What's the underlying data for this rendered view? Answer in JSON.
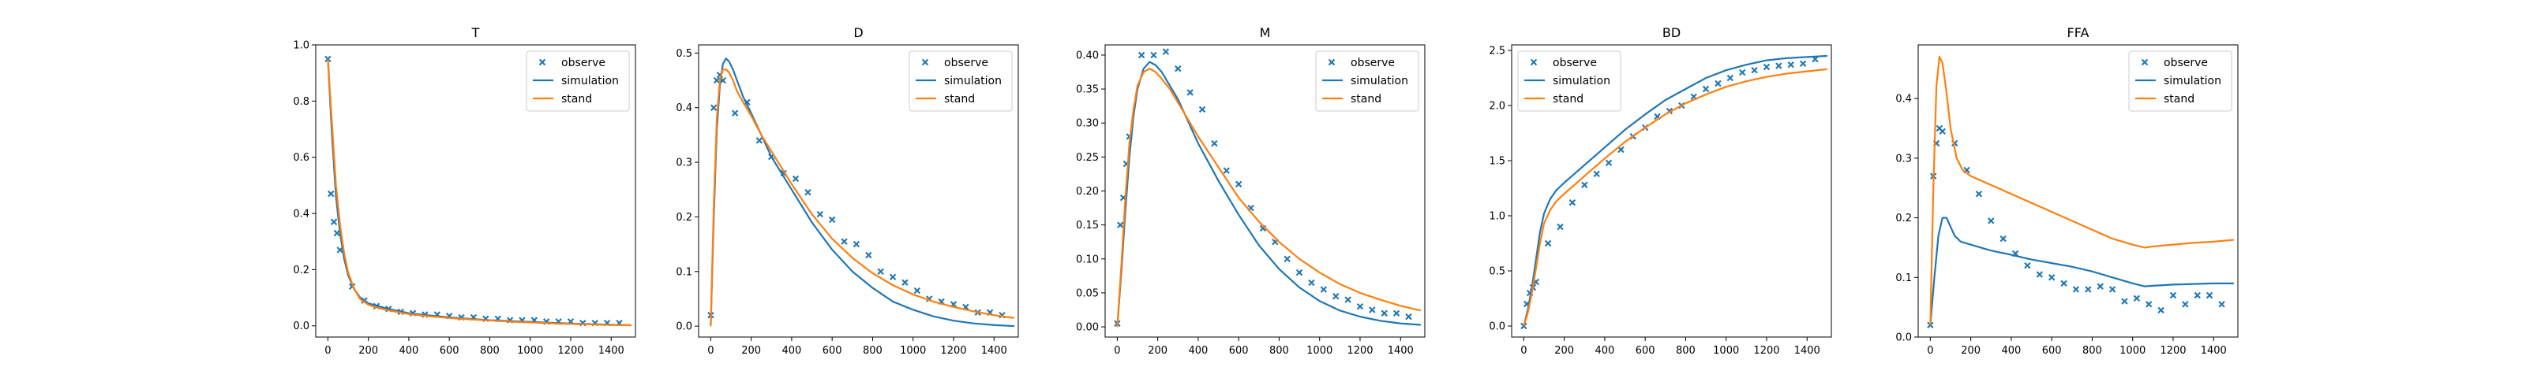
{
  "figure": {
    "legend_labels": {
      "observe": "observe",
      "simulation": "simulation",
      "stand": "stand"
    },
    "colors": {
      "observe": "#1f77b4",
      "simulation": "#1f77b4",
      "stand": "#ff7f0e"
    }
  },
  "chart_data": [
    {
      "type": "line",
      "title": "T",
      "xlabel": "",
      "ylabel": "",
      "xlim": [
        -60,
        1520
      ],
      "ylim": [
        -0.04,
        1.0
      ],
      "xticks": [
        0,
        200,
        400,
        600,
        800,
        1000,
        1200,
        1400
      ],
      "yticks": [
        0.0,
        0.2,
        0.4,
        0.6,
        0.8,
        1.0
      ],
      "ytick_labels": [
        "0.0",
        "0.2",
        "0.4",
        "0.6",
        "0.8",
        "1.0"
      ],
      "legend": "top-right",
      "series": [
        {
          "name": "observe",
          "kind": "scatter",
          "x": [
            0,
            15,
            30,
            45,
            60,
            120,
            180,
            240,
            300,
            360,
            420,
            480,
            540,
            600,
            660,
            720,
            780,
            840,
            900,
            960,
            1020,
            1080,
            1140,
            1200,
            1260,
            1320,
            1380,
            1440
          ],
          "y": [
            0.95,
            0.47,
            0.37,
            0.33,
            0.27,
            0.14,
            0.09,
            0.07,
            0.06,
            0.05,
            0.045,
            0.04,
            0.04,
            0.035,
            0.03,
            0.03,
            0.025,
            0.025,
            0.02,
            0.02,
            0.02,
            0.015,
            0.015,
            0.015,
            0.01,
            0.01,
            0.01,
            0.01
          ]
        },
        {
          "name": "simulation",
          "kind": "line",
          "x": [
            0,
            20,
            40,
            60,
            80,
            100,
            130,
            160,
            200,
            250,
            300,
            400,
            500,
            600,
            700,
            800,
            900,
            1000,
            1100,
            1200,
            1300,
            1400,
            1500
          ],
          "y": [
            0.95,
            0.68,
            0.46,
            0.33,
            0.24,
            0.18,
            0.13,
            0.1,
            0.08,
            0.07,
            0.06,
            0.045,
            0.037,
            0.03,
            0.025,
            0.02,
            0.017,
            0.014,
            0.011,
            0.008,
            0.006,
            0.004,
            0.002
          ]
        },
        {
          "name": "stand",
          "kind": "line",
          "x": [
            0,
            20,
            40,
            60,
            80,
            100,
            130,
            160,
            200,
            250,
            300,
            400,
            500,
            600,
            700,
            800,
            900,
            1000,
            1100,
            1200,
            1300,
            1400,
            1500
          ],
          "y": [
            0.95,
            0.72,
            0.5,
            0.36,
            0.26,
            0.19,
            0.13,
            0.095,
            0.075,
            0.063,
            0.055,
            0.042,
            0.034,
            0.028,
            0.023,
            0.019,
            0.015,
            0.012,
            0.009,
            0.007,
            0.005,
            0.003,
            0.002
          ]
        }
      ]
    },
    {
      "type": "line",
      "title": "D",
      "xlabel": "",
      "ylabel": "",
      "xlim": [
        -60,
        1520
      ],
      "ylim": [
        -0.02,
        0.515
      ],
      "xticks": [
        0,
        200,
        400,
        600,
        800,
        1000,
        1200,
        1400
      ],
      "yticks": [
        0.0,
        0.1,
        0.2,
        0.3,
        0.4,
        0.5
      ],
      "ytick_labels": [
        "0.0",
        "0.1",
        "0.2",
        "0.3",
        "0.4",
        "0.5"
      ],
      "legend": "top-right",
      "series": [
        {
          "name": "observe",
          "kind": "scatter",
          "x": [
            0,
            15,
            30,
            45,
            60,
            120,
            180,
            240,
            300,
            360,
            420,
            480,
            540,
            600,
            660,
            720,
            780,
            840,
            900,
            960,
            1020,
            1080,
            1140,
            1200,
            1260,
            1320,
            1380,
            1440
          ],
          "y": [
            0.02,
            0.4,
            0.45,
            0.46,
            0.45,
            0.39,
            0.41,
            0.34,
            0.31,
            0.28,
            0.27,
            0.245,
            0.205,
            0.195,
            0.155,
            0.15,
            0.13,
            0.1,
            0.09,
            0.08,
            0.065,
            0.05,
            0.045,
            0.04,
            0.035,
            0.025,
            0.025,
            0.02
          ]
        },
        {
          "name": "simulation",
          "kind": "line",
          "x": [
            0,
            15,
            30,
            45,
            60,
            75,
            90,
            110,
            130,
            160,
            200,
            250,
            300,
            400,
            500,
            600,
            700,
            800,
            900,
            1000,
            1100,
            1200,
            1300,
            1400,
            1500
          ],
          "y": [
            0.0,
            0.2,
            0.36,
            0.44,
            0.48,
            0.49,
            0.485,
            0.47,
            0.45,
            0.42,
            0.39,
            0.35,
            0.31,
            0.25,
            0.19,
            0.14,
            0.1,
            0.07,
            0.045,
            0.03,
            0.018,
            0.01,
            0.005,
            0.002,
            0.0
          ]
        },
        {
          "name": "stand",
          "kind": "line",
          "x": [
            0,
            15,
            30,
            45,
            60,
            75,
            90,
            110,
            130,
            160,
            200,
            250,
            300,
            400,
            500,
            600,
            700,
            800,
            900,
            1000,
            1100,
            1200,
            1300,
            1400,
            1500
          ],
          "y": [
            0.0,
            0.22,
            0.38,
            0.45,
            0.47,
            0.47,
            0.465,
            0.45,
            0.43,
            0.41,
            0.385,
            0.35,
            0.32,
            0.26,
            0.205,
            0.16,
            0.125,
            0.097,
            0.075,
            0.058,
            0.045,
            0.035,
            0.027,
            0.02,
            0.015
          ]
        }
      ]
    },
    {
      "type": "line",
      "title": "M",
      "xlabel": "",
      "ylabel": "",
      "xlim": [
        -60,
        1520
      ],
      "ylim": [
        -0.015,
        0.415
      ],
      "xticks": [
        0,
        200,
        400,
        600,
        800,
        1000,
        1200,
        1400
      ],
      "yticks": [
        0.0,
        0.05,
        0.1,
        0.15,
        0.2,
        0.25,
        0.3,
        0.35,
        0.4
      ],
      "ytick_labels": [
        "0.00",
        "0.05",
        "0.10",
        "0.15",
        "0.20",
        "0.25",
        "0.30",
        "0.35",
        "0.40"
      ],
      "legend": "top-right",
      "series": [
        {
          "name": "observe",
          "kind": "scatter",
          "x": [
            0,
            15,
            30,
            45,
            60,
            120,
            180,
            240,
            300,
            360,
            420,
            480,
            540,
            600,
            660,
            720,
            780,
            840,
            900,
            960,
            1020,
            1080,
            1140,
            1200,
            1260,
            1320,
            1380,
            1440
          ],
          "y": [
            0.005,
            0.15,
            0.19,
            0.24,
            0.28,
            0.4,
            0.4,
            0.405,
            0.38,
            0.345,
            0.32,
            0.27,
            0.23,
            0.21,
            0.175,
            0.145,
            0.125,
            0.1,
            0.08,
            0.065,
            0.055,
            0.045,
            0.04,
            0.03,
            0.025,
            0.02,
            0.02,
            0.015
          ]
        },
        {
          "name": "simulation",
          "kind": "line",
          "x": [
            0,
            20,
            40,
            60,
            80,
            100,
            130,
            160,
            190,
            220,
            260,
            300,
            400,
            500,
            600,
            700,
            800,
            900,
            1000,
            1100,
            1200,
            1300,
            1400,
            1500
          ],
          "y": [
            0.0,
            0.08,
            0.17,
            0.25,
            0.31,
            0.35,
            0.38,
            0.39,
            0.385,
            0.375,
            0.355,
            0.335,
            0.27,
            0.215,
            0.165,
            0.12,
            0.085,
            0.058,
            0.038,
            0.024,
            0.015,
            0.009,
            0.005,
            0.003
          ]
        },
        {
          "name": "stand",
          "kind": "line",
          "x": [
            0,
            20,
            40,
            60,
            80,
            100,
            130,
            160,
            190,
            220,
            260,
            300,
            400,
            500,
            600,
            700,
            800,
            900,
            1000,
            1100,
            1200,
            1300,
            1400,
            1500
          ],
          "y": [
            0.0,
            0.09,
            0.19,
            0.27,
            0.32,
            0.355,
            0.375,
            0.38,
            0.375,
            0.365,
            0.35,
            0.33,
            0.28,
            0.235,
            0.19,
            0.155,
            0.125,
            0.1,
            0.08,
            0.063,
            0.05,
            0.04,
            0.031,
            0.024
          ]
        }
      ]
    },
    {
      "type": "line",
      "title": "BD",
      "xlabel": "",
      "ylabel": "",
      "xlim": [
        -60,
        1520
      ],
      "ylim": [
        -0.1,
        2.55
      ],
      "xticks": [
        0,
        200,
        400,
        600,
        800,
        1000,
        1200,
        1400
      ],
      "yticks": [
        0.0,
        0.5,
        1.0,
        1.5,
        2.0,
        2.5
      ],
      "ytick_labels": [
        "0.0",
        "0.5",
        "1.0",
        "1.5",
        "2.0",
        "2.5"
      ],
      "legend": "top-left",
      "series": [
        {
          "name": "observe",
          "kind": "scatter",
          "x": [
            0,
            15,
            30,
            45,
            60,
            120,
            180,
            240,
            300,
            360,
            420,
            480,
            540,
            600,
            660,
            720,
            780,
            840,
            900,
            960,
            1020,
            1080,
            1140,
            1200,
            1260,
            1320,
            1380,
            1440
          ],
          "y": [
            0.0,
            0.2,
            0.3,
            0.35,
            0.4,
            0.75,
            0.9,
            1.12,
            1.28,
            1.38,
            1.48,
            1.6,
            1.72,
            1.8,
            1.9,
            1.95,
            2.0,
            2.08,
            2.15,
            2.2,
            2.25,
            2.3,
            2.32,
            2.35,
            2.36,
            2.37,
            2.38,
            2.42
          ]
        },
        {
          "name": "simulation",
          "kind": "line",
          "x": [
            0,
            20,
            40,
            60,
            80,
            100,
            130,
            160,
            200,
            250,
            300,
            400,
            500,
            600,
            700,
            800,
            900,
            1000,
            1100,
            1200,
            1300,
            1400,
            1500
          ],
          "y": [
            0.0,
            0.15,
            0.35,
            0.6,
            0.85,
            1.02,
            1.15,
            1.23,
            1.3,
            1.38,
            1.46,
            1.62,
            1.78,
            1.92,
            2.05,
            2.15,
            2.25,
            2.32,
            2.37,
            2.41,
            2.43,
            2.44,
            2.45
          ]
        },
        {
          "name": "stand",
          "kind": "line",
          "x": [
            0,
            20,
            40,
            60,
            80,
            100,
            130,
            160,
            200,
            250,
            300,
            400,
            500,
            600,
            700,
            800,
            900,
            1000,
            1100,
            1200,
            1300,
            1400,
            1500
          ],
          "y": [
            0.0,
            0.12,
            0.3,
            0.52,
            0.75,
            0.93,
            1.05,
            1.13,
            1.2,
            1.28,
            1.36,
            1.52,
            1.67,
            1.8,
            1.92,
            2.02,
            2.1,
            2.17,
            2.22,
            2.26,
            2.29,
            2.31,
            2.33
          ]
        }
      ]
    },
    {
      "type": "line",
      "title": "FFA",
      "xlabel": "",
      "ylabel": "",
      "xlim": [
        -60,
        1520
      ],
      "ylim": [
        0.0,
        0.49
      ],
      "xticks": [
        0,
        200,
        400,
        600,
        800,
        1000,
        1200,
        1400
      ],
      "yticks": [
        0.0,
        0.1,
        0.2,
        0.3,
        0.4
      ],
      "ytick_labels": [
        "0.0",
        "0.1",
        "0.2",
        "0.3",
        "0.4"
      ],
      "legend": "top-right",
      "series": [
        {
          "name": "observe",
          "kind": "scatter",
          "x": [
            0,
            15,
            30,
            45,
            60,
            120,
            180,
            240,
            300,
            360,
            420,
            480,
            540,
            600,
            660,
            720,
            780,
            840,
            900,
            960,
            1020,
            1080,
            1140,
            1200,
            1260,
            1320,
            1380,
            1440
          ],
          "y": [
            0.02,
            0.27,
            0.325,
            0.35,
            0.345,
            0.325,
            0.28,
            0.24,
            0.195,
            0.165,
            0.14,
            0.12,
            0.105,
            0.1,
            0.09,
            0.08,
            0.08,
            0.085,
            0.08,
            0.06,
            0.065,
            0.055,
            0.045,
            0.07,
            0.055,
            0.07,
            0.07,
            0.055
          ]
        },
        {
          "name": "simulation",
          "kind": "line",
          "x": [
            0,
            20,
            40,
            60,
            80,
            100,
            120,
            150,
            200,
            300,
            400,
            500,
            600,
            700,
            800,
            900,
            1000,
            1060,
            1100,
            1200,
            1300,
            1400,
            1500
          ],
          "y": [
            0.02,
            0.1,
            0.17,
            0.2,
            0.2,
            0.185,
            0.17,
            0.16,
            0.155,
            0.145,
            0.138,
            0.13,
            0.124,
            0.118,
            0.11,
            0.1,
            0.09,
            0.085,
            0.086,
            0.088,
            0.089,
            0.09,
            0.09
          ]
        },
        {
          "name": "stand",
          "kind": "line",
          "x": [
            0,
            15,
            30,
            45,
            60,
            80,
            100,
            130,
            160,
            200,
            300,
            400,
            500,
            600,
            700,
            800,
            900,
            1000,
            1060,
            1100,
            1200,
            1300,
            1400,
            1500
          ],
          "y": [
            0.02,
            0.25,
            0.42,
            0.47,
            0.46,
            0.41,
            0.35,
            0.3,
            0.28,
            0.27,
            0.255,
            0.24,
            0.225,
            0.21,
            0.195,
            0.18,
            0.165,
            0.155,
            0.15,
            0.152,
            0.155,
            0.158,
            0.16,
            0.163
          ]
        }
      ]
    }
  ]
}
